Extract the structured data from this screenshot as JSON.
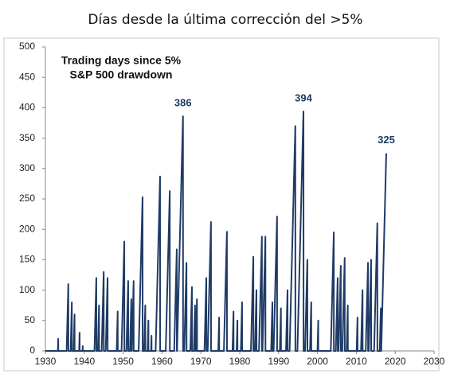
{
  "chart_data": {
    "type": "line",
    "title": "Días desde la última corrección del >5%",
    "annotation_lines": [
      "Trading days since 5%",
      "S&P 500 drawdown"
    ],
    "peak_labels": [
      {
        "x": 1965.4,
        "value": 386
      },
      {
        "x": 1996.4,
        "value": 394
      },
      {
        "x": 2017.7,
        "value": 325
      }
    ],
    "xlim": [
      1930,
      2030
    ],
    "xticks": [
      1930,
      1940,
      1950,
      1960,
      1970,
      1980,
      1990,
      2000,
      2010,
      2020,
      2030
    ],
    "ylim": [
      0,
      500
    ],
    "yticks": [
      0,
      50,
      100,
      150,
      200,
      250,
      300,
      350,
      400,
      450,
      500
    ],
    "x": [
      1930,
      1933.2,
      1933.3,
      1933.32,
      1935.46,
      1935.9,
      1935.92,
      1936.5,
      1936.8,
      1936.82,
      1937.26,
      1937.5,
      1937.52,
      1938.68,
      1938.8,
      1938.82,
      1939.57,
      1939.6,
      1939.62,
      1942.62,
      1943.1,
      1943.12,
      1943.5,
      1943.8,
      1943.82,
      1944.48,
      1945.0,
      1945.02,
      1945.52,
      1946.0,
      1946.02,
      1948.34,
      1948.6,
      1948.62,
      1949.59,
      1950.3,
      1950.32,
      1950.84,
      1951.3,
      1951.32,
      1951.76,
      1952.1,
      1952.12,
      1952.24,
      1952.7,
      1952.72,
      1954.0,
      1955.0,
      1955.02,
      1955.4,
      1955.7,
      1955.72,
      1956.3,
      1956.5,
      1956.52,
      1957.2,
      1957.3,
      1957.32,
      1958.36,
      1959.5,
      1959.52,
      1960.96,
      1962.0,
      1962.02,
      1963.14,
      1963.8,
      1963.82,
      1963.87,
      1965.4,
      1965.42,
      1965.72,
      1966.3,
      1966.32,
      1967.28,
      1967.7,
      1967.72,
      1968.2,
      1968.5,
      1968.52,
      1968.66,
      1969.0,
      1969.02,
      1970.92,
      1971.4,
      1971.42,
      1971.76,
      1972.6,
      1972.62,
      1974.48,
      1974.7,
      1974.72,
      1975.92,
      1976.7,
      1976.72,
      1978.14,
      1978.4,
      1978.42,
      1979.2,
      1979.4,
      1979.42,
      1980.28,
      1980.6,
      1980.62,
      1982.88,
      1983.5,
      1983.52,
      1983.9,
      1984.3,
      1984.32,
      1984.95,
      1985.7,
      1985.72,
      1985.85,
      1986.6,
      1986.62,
      1988.08,
      1988.4,
      1988.42,
      1988.72,
      1989.6,
      1989.62,
      1990.32,
      1990.6,
      1990.62,
      1991.9,
      1992.3,
      1992.32,
      1992.83,
      1994.3,
      1994.32,
      1994.84,
      1996.4,
      1996.42,
      1996.8,
      1997.4,
      1997.42,
      1998.08,
      1998.4,
      1998.42,
      2000.0,
      2000.2,
      2000.22,
      2003.43,
      2004.2,
      2004.22,
      2004.72,
      2005.2,
      2005.22,
      2005.44,
      2006.0,
      2006.02,
      2006.39,
      2007.0,
      2007.02,
      2007.5,
      2007.8,
      2007.82,
      2010.08,
      2010.3,
      2010.32,
      2011.2,
      2011.6,
      2011.62,
      2012.42,
      2013.0,
      2013.02,
      2013.2,
      2013.8,
      2013.82,
      2014.57,
      2015.4,
      2015.42,
      2016.02,
      2016.3,
      2016.32,
      2016.41,
      2017.7
    ],
    "series": [
      {
        "name": "Trading days",
        "color": "#1f3b66",
        "values": [
          0,
          0,
          20,
          0,
          0,
          110,
          0,
          0,
          80,
          0,
          0,
          60,
          0,
          0,
          30,
          0,
          0,
          8,
          0,
          0,
          120,
          0,
          0,
          75,
          0,
          0,
          130,
          0,
          0,
          120,
          0,
          0,
          65,
          0,
          0,
          180,
          0,
          0,
          115,
          0,
          0,
          85,
          0,
          0,
          115,
          0,
          0,
          253,
          0,
          0,
          75,
          0,
          0,
          50,
          0,
          0,
          25,
          0,
          0,
          287,
          0,
          0,
          263,
          0,
          0,
          167,
          0,
          0,
          386,
          0,
          0,
          145,
          0,
          0,
          105,
          0,
          0,
          75,
          0,
          0,
          85,
          0,
          0,
          120,
          0,
          0,
          212,
          0,
          0,
          55,
          0,
          0,
          196,
          0,
          0,
          65,
          0,
          0,
          50,
          0,
          0,
          80,
          0,
          0,
          155,
          0,
          0,
          100,
          0,
          0,
          188,
          0,
          0,
          188,
          0,
          0,
          80,
          0,
          0,
          221,
          0,
          0,
          70,
          0,
          0,
          100,
          0,
          0,
          370,
          0,
          0,
          394,
          0,
          0,
          150,
          0,
          0,
          80,
          0,
          0,
          50,
          0,
          0,
          195,
          0,
          0,
          120,
          0,
          0,
          140,
          0,
          0,
          153,
          0,
          0,
          75,
          0,
          0,
          55,
          0,
          0,
          100,
          0,
          0,
          145,
          0,
          0,
          150,
          0,
          0,
          210,
          0,
          0,
          70,
          0,
          0,
          325
        ]
      }
    ]
  }
}
